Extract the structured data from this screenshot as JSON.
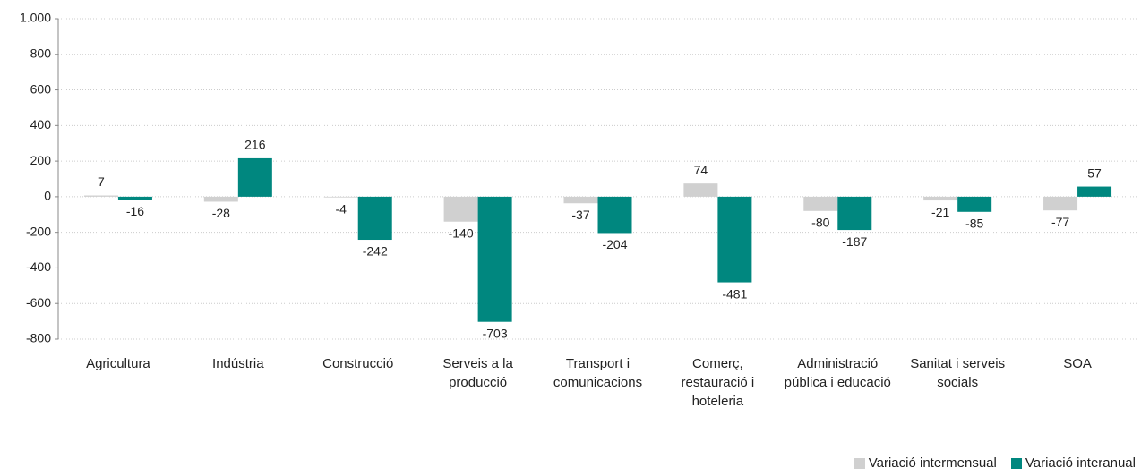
{
  "chart_data": {
    "type": "bar",
    "categories": [
      "Agricultura",
      "Indústria",
      "Construcció",
      "Serveis a la producció",
      "Transport i comunicacions",
      "Comerç, restauració i hoteleria",
      "Administració pública i educació",
      "Sanitat i serveis socials",
      "SOA"
    ],
    "series": [
      {
        "name": "Variació intermensual",
        "color": "#d0d0d0",
        "values": [
          7,
          -28,
          -4,
          -140,
          -37,
          74,
          -80,
          -21,
          -77
        ]
      },
      {
        "name": "Variació interanual",
        "color": "#00877f",
        "values": [
          -16,
          216,
          -242,
          -703,
          -204,
          -481,
          -187,
          -85,
          57
        ]
      }
    ],
    "ylim": [
      -800,
      1000
    ],
    "yticks": [
      -800,
      -600,
      -400,
      -200,
      0,
      200,
      400,
      600,
      800,
      {
        "value": 1000,
        "label": "1.000"
      }
    ],
    "grid": true,
    "legend": "bottom-right"
  }
}
